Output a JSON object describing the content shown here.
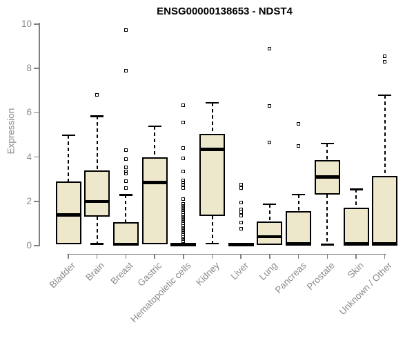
{
  "chart_data": {
    "type": "boxplot",
    "title": "ENSG00000138653 - NDST4",
    "ylabel": "Expression",
    "xlabel": "",
    "ylim": [
      0,
      10
    ],
    "yticks": [
      0,
      2,
      4,
      6,
      8,
      10
    ],
    "grid": false,
    "legend": "none",
    "colors": {
      "box_fill": "#ede8cc",
      "box_border": "#000000",
      "median": "#000000",
      "axis": "#808080",
      "tick_text": "#8a8a8a",
      "title_text": "#000000"
    },
    "categories": [
      "Bladder",
      "Brain",
      "Breast",
      "Gastric",
      "Hematopoietic cells",
      "Kidney",
      "Liver",
      "Lung",
      "Pancreas",
      "Prostate",
      "Skin",
      "Unknown / Other"
    ],
    "series": [
      {
        "name": "Bladder",
        "whisker_low": 0.05,
        "q1": 0.05,
        "median": 1.38,
        "q3": 2.9,
        "whisker_high": 5.0,
        "outliers": []
      },
      {
        "name": "Brain",
        "whisker_low": 0.08,
        "q1": 1.3,
        "median": 2.0,
        "q3": 3.4,
        "whisker_high": 5.85,
        "outliers": [
          6.8
        ]
      },
      {
        "name": "Breast",
        "whisker_low": 0.0,
        "q1": 0.0,
        "median": 0.06,
        "q3": 1.05,
        "whisker_high": 2.3,
        "outliers": [
          2.6,
          2.9,
          3.25,
          3.35,
          3.55,
          3.9,
          4.3,
          7.9,
          9.75
        ]
      },
      {
        "name": "Gastric",
        "whisker_low": 0.07,
        "q1": 0.07,
        "median": 2.85,
        "q3": 4.0,
        "whisker_high": 5.4,
        "outliers": []
      },
      {
        "name": "Hematopoietic cells",
        "whisker_low": 0.0,
        "q1": 0.0,
        "median": 0.04,
        "q3": 0.1,
        "whisker_high": 0.1,
        "outliers": [
          0.2,
          0.3,
          0.4,
          0.5,
          0.6,
          0.7,
          0.8,
          0.9,
          1.0,
          1.1,
          1.2,
          1.3,
          1.4,
          1.5,
          1.6,
          1.7,
          1.8,
          1.9,
          2.1,
          2.6,
          2.75,
          2.85,
          2.95,
          3.35,
          3.95,
          4.4,
          5.55,
          6.35
        ]
      },
      {
        "name": "Kidney",
        "whisker_low": 0.1,
        "q1": 1.35,
        "median": 4.35,
        "q3": 5.05,
        "whisker_high": 6.45,
        "outliers": []
      },
      {
        "name": "Liver",
        "whisker_low": 0.0,
        "q1": 0.0,
        "median": 0.04,
        "q3": 0.09,
        "whisker_high": 0.09,
        "outliers": [
          0.75,
          1.05,
          1.35,
          1.5,
          1.65,
          1.95,
          2.6,
          2.75
        ]
      },
      {
        "name": "Lung",
        "whisker_low": 0.02,
        "q1": 0.02,
        "median": 0.4,
        "q3": 1.1,
        "whisker_high": 1.88,
        "outliers": [
          4.65,
          6.3,
          8.9
        ]
      },
      {
        "name": "Pancreas",
        "whisker_low": 0.02,
        "q1": 0.02,
        "median": 0.08,
        "q3": 1.55,
        "whisker_high": 2.32,
        "outliers": [
          4.5,
          5.5
        ]
      },
      {
        "name": "Prostate",
        "whisker_low": 0.05,
        "q1": 2.3,
        "median": 3.1,
        "q3": 3.85,
        "whisker_high": 4.62,
        "outliers": []
      },
      {
        "name": "Skin",
        "whisker_low": 0.02,
        "q1": 0.02,
        "median": 0.08,
        "q3": 1.7,
        "whisker_high": 2.55,
        "outliers": []
      },
      {
        "name": "Unknown / Other",
        "whisker_low": 0.02,
        "q1": 0.02,
        "median": 0.08,
        "q3": 3.15,
        "whisker_high": 6.8,
        "outliers": [
          8.3,
          8.55
        ]
      }
    ]
  }
}
